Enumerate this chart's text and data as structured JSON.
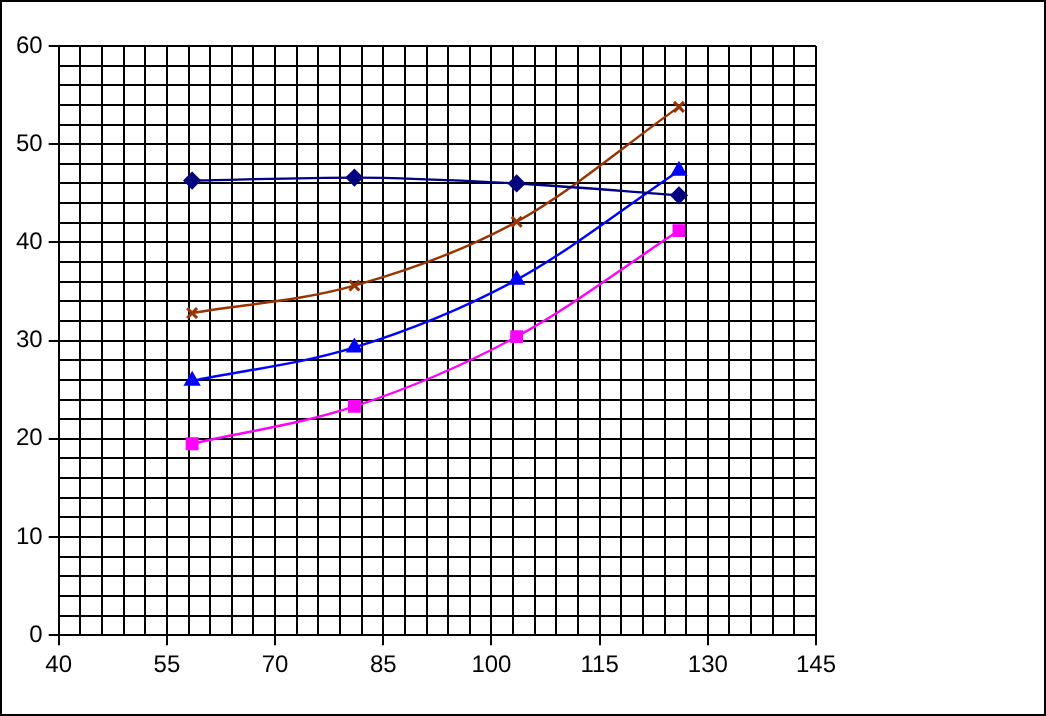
{
  "chart_data": {
    "type": "line",
    "x": [
      58.5,
      81,
      103.5,
      126
    ],
    "xlim": [
      40,
      145
    ],
    "ylim": [
      0,
      60
    ],
    "xticks": [
      40,
      {
        "value": 43,
        "label": null
      },
      {
        "value": 46,
        "label": null
      },
      {
        "value": 49,
        "label": null
      },
      {
        "value": 52,
        "label": null
      },
      55,
      {
        "value": 58,
        "label": null
      },
      {
        "value": 61,
        "label": null
      },
      {
        "value": 64,
        "label": null
      },
      {
        "value": 67,
        "label": null
      },
      70,
      {
        "value": 73,
        "label": null
      },
      {
        "value": 76,
        "label": null
      },
      {
        "value": 79,
        "label": null
      },
      {
        "value": 82,
        "label": null
      },
      85,
      {
        "value": 88,
        "label": null
      },
      {
        "value": 91,
        "label": null
      },
      {
        "value": 94,
        "label": null
      },
      {
        "value": 97,
        "label": null
      },
      100,
      {
        "value": 103,
        "label": null
      },
      {
        "value": 106,
        "label": null
      },
      {
        "value": 109,
        "label": null
      },
      {
        "value": 112,
        "label": null
      },
      115,
      {
        "value": 118,
        "label": null
      },
      {
        "value": 121,
        "label": null
      },
      {
        "value": 124,
        "label": null
      },
      {
        "value": 127,
        "label": null
      },
      130,
      {
        "value": 133,
        "label": null
      },
      {
        "value": 136,
        "label": null
      },
      {
        "value": 139,
        "label": null
      },
      {
        "value": 142,
        "label": null
      },
      145
    ],
    "yticks": [
      0,
      {
        "value": 2,
        "label": null
      },
      {
        "value": 4,
        "label": null
      },
      {
        "value": 6,
        "label": null
      },
      {
        "value": 8,
        "label": null
      },
      10,
      {
        "value": 12,
        "label": null
      },
      {
        "value": 14,
        "label": null
      },
      {
        "value": 16,
        "label": null
      },
      {
        "value": 18,
        "label": null
      },
      20,
      {
        "value": 22,
        "label": null
      },
      {
        "value": 24,
        "label": null
      },
      {
        "value": 26,
        "label": null
      },
      {
        "value": 28,
        "label": null
      },
      30,
      {
        "value": 32,
        "label": null
      },
      {
        "value": 34,
        "label": null
      },
      {
        "value": 36,
        "label": null
      },
      {
        "value": 38,
        "label": null
      },
      40,
      {
        "value": 42,
        "label": null
      },
      {
        "value": 44,
        "label": null
      },
      {
        "value": 46,
        "label": null
      },
      {
        "value": 48,
        "label": null
      },
      50,
      {
        "value": 52,
        "label": null
      },
      {
        "value": 54,
        "label": null
      },
      {
        "value": 56,
        "label": null
      },
      {
        "value": 58,
        "label": null
      },
      60
    ],
    "grid": true,
    "legend": false,
    "series": [
      {
        "color": "#000080",
        "marker": "diamond",
        "values": [
          46.3,
          46.6,
          46.0,
          44.8
        ]
      },
      {
        "color": "#993300",
        "marker": "cross",
        "values": [
          32.8,
          35.6,
          42.1,
          53.8
        ]
      },
      {
        "color": "#0000ff",
        "marker": "triangle",
        "values": [
          25.9,
          29.3,
          36.2,
          47.3
        ]
      },
      {
        "color": "#ff00ff",
        "marker": "square",
        "values": [
          19.5,
          23.3,
          30.4,
          41.2
        ]
      }
    ]
  }
}
